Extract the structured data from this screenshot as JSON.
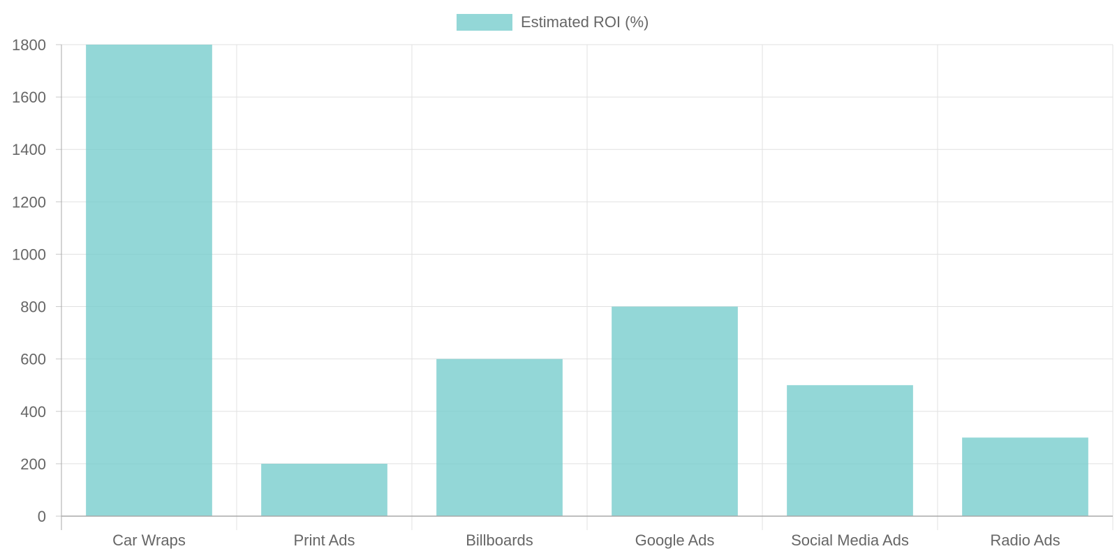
{
  "chart_data": {
    "type": "bar",
    "categories": [
      "Car Wraps",
      "Print Ads",
      "Billboards",
      "Google Ads",
      "Social Media Ads",
      "Radio Ads"
    ],
    "series": [
      {
        "name": "Estimated ROI (%)",
        "values": [
          1800,
          200,
          600,
          800,
          500,
          300
        ],
        "color": "#75CCCC"
      }
    ],
    "yticks": [
      0,
      200,
      400,
      600,
      800,
      1000,
      1200,
      1400,
      1600,
      1800
    ],
    "ylim": [
      0,
      1800
    ],
    "grid": true,
    "legend_position": "top-center"
  }
}
